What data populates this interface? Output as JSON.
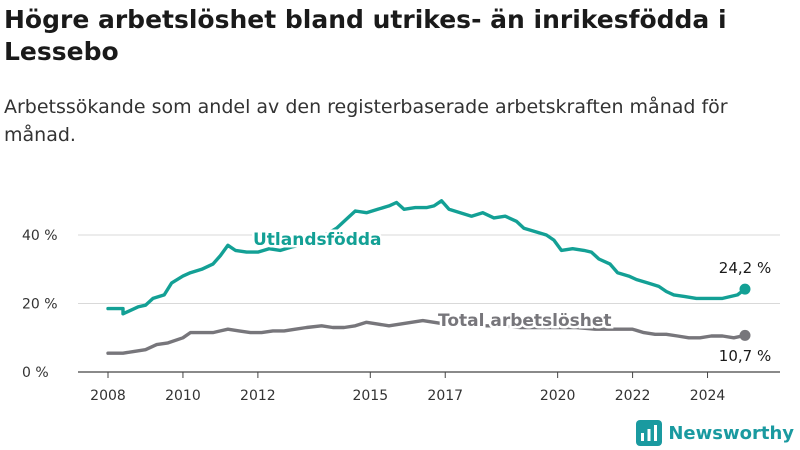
{
  "header": {
    "title": "Högre arbetslöshet bland utrikes- än inrikesfödda i Lessebo",
    "subtitle": "Arbetssökande som andel av den registerbaserade arbetskraften månad för månad."
  },
  "brand": {
    "name": "Newsworthy",
    "icon": "bar-chart-logo-icon",
    "color": "#1a9aa0"
  },
  "chart_data": {
    "type": "line",
    "xlabel": "",
    "ylabel": "",
    "xlim": [
      2007.6,
      2026.0
    ],
    "ylim": [
      0,
      52
    ],
    "grid": true,
    "x_ticks": [
      {
        "value": 2008,
        "label": "2008"
      },
      {
        "value": 2010,
        "label": "2010"
      },
      {
        "value": 2012,
        "label": "2012"
      },
      {
        "value": 2015,
        "label": "2015"
      },
      {
        "value": 2017,
        "label": "2017"
      },
      {
        "value": 2020,
        "label": "2020"
      },
      {
        "value": 2022,
        "label": "2022"
      },
      {
        "value": 2024,
        "label": "2024"
      }
    ],
    "y_ticks": [
      {
        "value": 0,
        "label": "0 %"
      },
      {
        "value": 20,
        "label": "20 %"
      },
      {
        "value": 40,
        "label": "40 %"
      }
    ],
    "series": [
      {
        "name": "Utlandsfödda",
        "color": "#13a095",
        "end_label": "24,2 %",
        "points": [
          [
            2008.0,
            18.5
          ],
          [
            2008.4,
            18.5
          ],
          [
            2008.4,
            17.0
          ],
          [
            2008.8,
            19.0
          ],
          [
            2009.0,
            19.5
          ],
          [
            2009.2,
            21.5
          ],
          [
            2009.5,
            22.5
          ],
          [
            2009.7,
            26.0
          ],
          [
            2010.0,
            28.0
          ],
          [
            2010.2,
            29.0
          ],
          [
            2010.5,
            30.0
          ],
          [
            2010.8,
            31.5
          ],
          [
            2011.0,
            34.0
          ],
          [
            2011.2,
            37.0
          ],
          [
            2011.4,
            35.5
          ],
          [
            2011.7,
            35.0
          ],
          [
            2012.0,
            35.0
          ],
          [
            2012.3,
            36.0
          ],
          [
            2012.6,
            35.5
          ],
          [
            2012.9,
            36.5
          ],
          [
            2013.1,
            37.0
          ],
          [
            2013.5,
            39.0
          ],
          [
            2013.8,
            40.0
          ],
          [
            2014.1,
            42.0
          ],
          [
            2014.4,
            45.0
          ],
          [
            2014.6,
            47.0
          ],
          [
            2014.9,
            46.5
          ],
          [
            2015.2,
            47.5
          ],
          [
            2015.5,
            48.5
          ],
          [
            2015.7,
            49.5
          ],
          [
            2015.9,
            47.5
          ],
          [
            2016.2,
            48.0
          ],
          [
            2016.5,
            48.0
          ],
          [
            2016.7,
            48.5
          ],
          [
            2016.9,
            50.0
          ],
          [
            2017.1,
            47.5
          ],
          [
            2017.4,
            46.5
          ],
          [
            2017.7,
            45.5
          ],
          [
            2018.0,
            46.5
          ],
          [
            2018.3,
            45.0
          ],
          [
            2018.6,
            45.5
          ],
          [
            2018.9,
            44.0
          ],
          [
            2019.1,
            42.0
          ],
          [
            2019.4,
            41.0
          ],
          [
            2019.7,
            40.0
          ],
          [
            2019.9,
            38.5
          ],
          [
            2020.1,
            35.5
          ],
          [
            2020.4,
            36.0
          ],
          [
            2020.7,
            35.5
          ],
          [
            2020.9,
            35.0
          ],
          [
            2021.1,
            33.0
          ],
          [
            2021.4,
            31.5
          ],
          [
            2021.6,
            29.0
          ],
          [
            2021.9,
            28.0
          ],
          [
            2022.1,
            27.0
          ],
          [
            2022.4,
            26.0
          ],
          [
            2022.7,
            25.0
          ],
          [
            2022.9,
            23.5
          ],
          [
            2023.1,
            22.5
          ],
          [
            2023.4,
            22.0
          ],
          [
            2023.7,
            21.5
          ],
          [
            2023.9,
            21.5
          ],
          [
            2024.1,
            21.5
          ],
          [
            2024.4,
            21.5
          ],
          [
            2024.6,
            22.0
          ],
          [
            2024.8,
            22.5
          ],
          [
            2025.0,
            24.2
          ]
        ]
      },
      {
        "name": "Total arbetslöshet",
        "color": "#77767b",
        "end_label": "10,7 %",
        "points": [
          [
            2008.0,
            5.5
          ],
          [
            2008.4,
            5.5
          ],
          [
            2008.7,
            6.0
          ],
          [
            2009.0,
            6.5
          ],
          [
            2009.3,
            8.0
          ],
          [
            2009.6,
            8.5
          ],
          [
            2010.0,
            10.0
          ],
          [
            2010.2,
            11.5
          ],
          [
            2010.5,
            11.5
          ],
          [
            2010.8,
            11.5
          ],
          [
            2011.0,
            12.0
          ],
          [
            2011.2,
            12.5
          ],
          [
            2011.5,
            12.0
          ],
          [
            2011.8,
            11.5
          ],
          [
            2012.1,
            11.5
          ],
          [
            2012.4,
            12.0
          ],
          [
            2012.7,
            12.0
          ],
          [
            2013.0,
            12.5
          ],
          [
            2013.3,
            13.0
          ],
          [
            2013.7,
            13.5
          ],
          [
            2014.0,
            13.0
          ],
          [
            2014.3,
            13.0
          ],
          [
            2014.6,
            13.5
          ],
          [
            2014.9,
            14.5
          ],
          [
            2015.2,
            14.0
          ],
          [
            2015.5,
            13.5
          ],
          [
            2015.8,
            14.0
          ],
          [
            2016.1,
            14.5
          ],
          [
            2016.4,
            15.0
          ],
          [
            2016.7,
            14.5
          ],
          [
            2017.0,
            14.0
          ],
          [
            2017.5,
            14.0
          ],
          [
            2018.0,
            13.5
          ],
          [
            2018.5,
            13.5
          ],
          [
            2019.0,
            13.0
          ],
          [
            2019.5,
            13.0
          ],
          [
            2020.0,
            13.0
          ],
          [
            2020.5,
            13.0
          ],
          [
            2021.0,
            12.5
          ],
          [
            2021.5,
            12.5
          ],
          [
            2021.8,
            12.5
          ],
          [
            2022.0,
            12.5
          ],
          [
            2022.3,
            11.5
          ],
          [
            2022.6,
            11.0
          ],
          [
            2022.9,
            11.0
          ],
          [
            2023.2,
            10.5
          ],
          [
            2023.5,
            10.0
          ],
          [
            2023.8,
            10.0
          ],
          [
            2024.1,
            10.5
          ],
          [
            2024.4,
            10.5
          ],
          [
            2024.7,
            10.0
          ],
          [
            2025.0,
            10.7
          ]
        ]
      }
    ]
  }
}
